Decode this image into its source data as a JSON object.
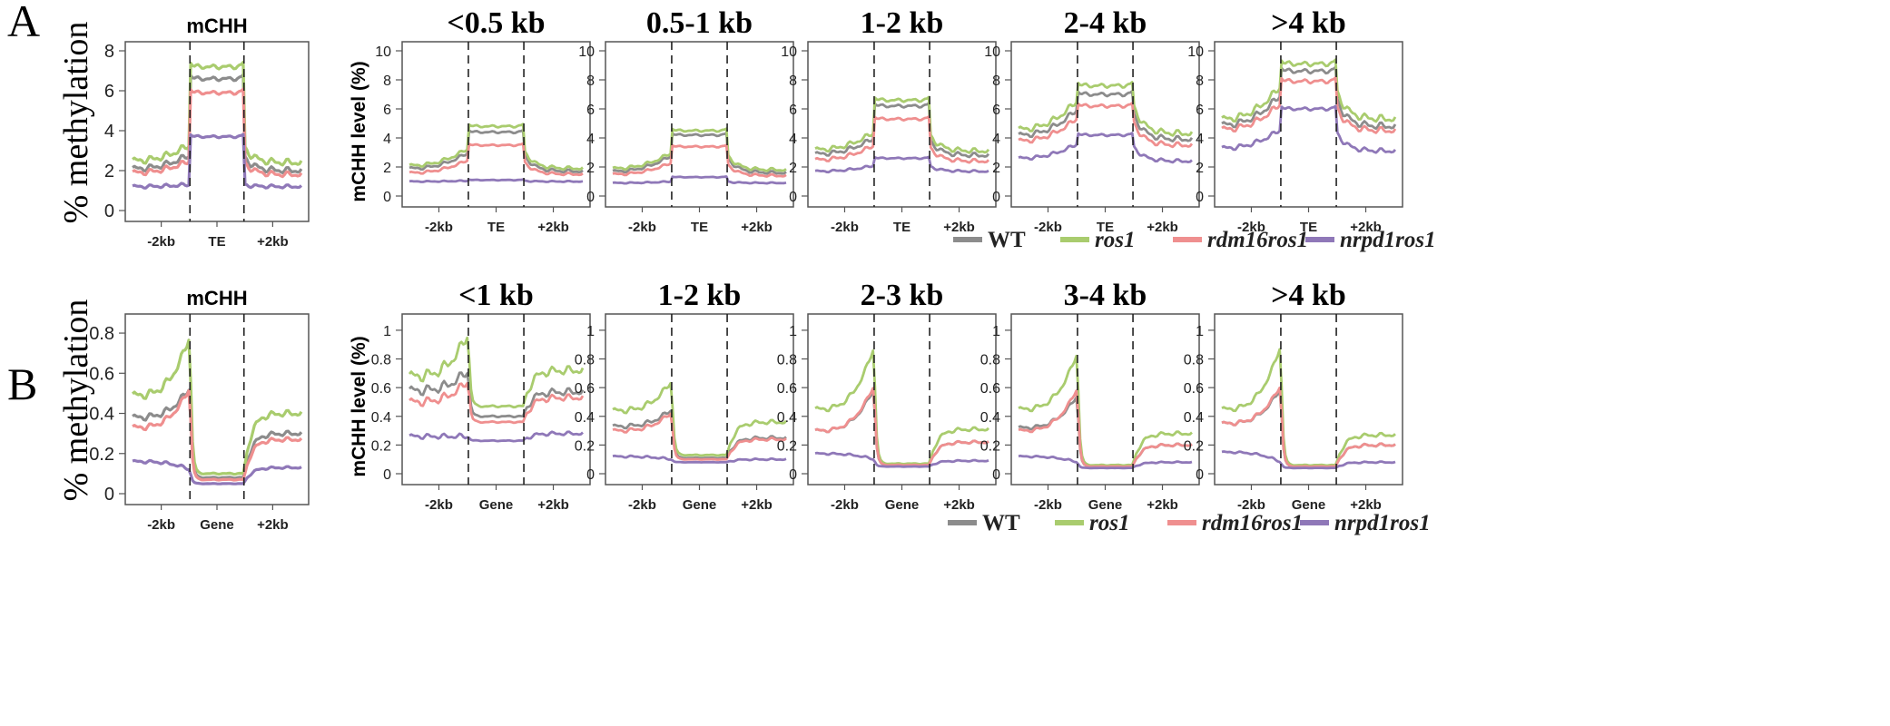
{
  "figure": {
    "panel_letters": [
      "A",
      "B"
    ],
    "ylabel_summary": "% methylation",
    "ylabel_detail": "mCHH level (%)",
    "colors": {
      "WT": "#8c8c8c",
      "ros1": "#a9cc6e",
      "rdm16ros1": "#ef8f8f",
      "nrpd1ros1": "#8f78b8"
    },
    "legend": [
      {
        "key": "WT",
        "label": "WT",
        "italic": false
      },
      {
        "key": "ros1",
        "label": "ros1",
        "italic": true
      },
      {
        "key": "rdm16ros1",
        "label": "rdm16ros1",
        "italic": true
      },
      {
        "key": "nrpd1ros1",
        "label": "nrpd1ros1",
        "italic": true
      }
    ]
  },
  "chart_data": [
    {
      "id": "A-summary",
      "row": "A",
      "type": "line",
      "title": "mCHH",
      "ylim": [
        0,
        8
      ],
      "yticks": [
        0,
        2,
        4,
        6,
        8
      ],
      "xregions": [
        "-2kb",
        "TE",
        "+2kb"
      ],
      "ylabel": "% methylation",
      "series": [
        {
          "key": "WT",
          "flank": 2.1,
          "peak": 2.8,
          "body": 6.6,
          "right": 2.0
        },
        {
          "key": "ros1",
          "flank": 2.5,
          "peak": 3.3,
          "body": 7.2,
          "right": 2.4
        },
        {
          "key": "rdm16ros1",
          "flank": 1.9,
          "peak": 2.5,
          "body": 5.9,
          "right": 1.8
        },
        {
          "key": "nrpd1ros1",
          "flank": 1.2,
          "peak": 1.3,
          "body": 3.7,
          "right": 1.2
        }
      ]
    },
    {
      "id": "A-1",
      "row": "A",
      "type": "line",
      "title": "<0.5 kb",
      "ylim": [
        0,
        10
      ],
      "yticks": [
        0,
        2,
        4,
        6,
        8,
        10
      ],
      "xregions": [
        "-2kb",
        "TE",
        "+2kb"
      ],
      "ylabel": "mCHH level (%)",
      "series": [
        {
          "key": "WT",
          "flank": 1.9,
          "peak": 3.0,
          "body": 4.4,
          "right": 1.7
        },
        {
          "key": "ros1",
          "flank": 2.1,
          "peak": 3.3,
          "body": 4.8,
          "right": 1.9
        },
        {
          "key": "rdm16ros1",
          "flank": 1.6,
          "peak": 2.5,
          "body": 3.5,
          "right": 1.5
        },
        {
          "key": "nrpd1ros1",
          "flank": 1.0,
          "peak": 1.05,
          "body": 1.1,
          "right": 1.0
        }
      ]
    },
    {
      "id": "A-2",
      "row": "A",
      "type": "line",
      "title": "0.5-1 kb",
      "ylim": [
        0,
        10
      ],
      "yticks": [
        0,
        2,
        4,
        6,
        8,
        10
      ],
      "xregions": [
        "-2kb",
        "TE",
        "+2kb"
      ],
      "ylabel": "",
      "series": [
        {
          "key": "WT",
          "flank": 1.7,
          "peak": 2.8,
          "body": 4.2,
          "right": 1.6
        },
        {
          "key": "ros1",
          "flank": 1.9,
          "peak": 3.0,
          "body": 4.5,
          "right": 1.8
        },
        {
          "key": "rdm16ros1",
          "flank": 1.5,
          "peak": 2.3,
          "body": 3.4,
          "right": 1.4
        },
        {
          "key": "nrpd1ros1",
          "flank": 0.9,
          "peak": 1.0,
          "body": 1.3,
          "right": 0.9
        }
      ]
    },
    {
      "id": "A-3",
      "row": "A",
      "type": "line",
      "title": "1-2 kb",
      "ylim": [
        0,
        10
      ],
      "yticks": [
        0,
        2,
        4,
        6,
        8,
        10
      ],
      "xregions": [
        "-2kb",
        "TE",
        "+2kb"
      ],
      "ylabel": "",
      "series": [
        {
          "key": "WT",
          "flank": 2.9,
          "peak": 4.0,
          "body": 6.2,
          "right": 2.8
        },
        {
          "key": "ros1",
          "flank": 3.2,
          "peak": 4.4,
          "body": 6.6,
          "right": 3.1
        },
        {
          "key": "rdm16ros1",
          "flank": 2.5,
          "peak": 3.5,
          "body": 5.3,
          "right": 2.4
        },
        {
          "key": "nrpd1ros1",
          "flank": 1.7,
          "peak": 2.1,
          "body": 2.6,
          "right": 1.7
        }
      ]
    },
    {
      "id": "A-4",
      "row": "A",
      "type": "line",
      "title": "2-4 kb",
      "ylim": [
        0,
        10
      ],
      "yticks": [
        0,
        2,
        4,
        6,
        8,
        10
      ],
      "xregions": [
        "-2kb",
        "TE",
        "+2kb"
      ],
      "ylabel": "",
      "series": [
        {
          "key": "WT",
          "flank": 4.2,
          "peak": 6.0,
          "body": 7.0,
          "right": 3.9
        },
        {
          "key": "ros1",
          "flank": 4.6,
          "peak": 6.6,
          "body": 7.6,
          "right": 4.3
        },
        {
          "key": "rdm16ros1",
          "flank": 3.8,
          "peak": 5.4,
          "body": 6.2,
          "right": 3.5
        },
        {
          "key": "nrpd1ros1",
          "flank": 2.6,
          "peak": 3.6,
          "body": 4.2,
          "right": 2.4
        }
      ]
    },
    {
      "id": "A-5",
      "row": "A",
      "type": "line",
      "title": ">4 kb",
      "ylim": [
        0,
        10
      ],
      "yticks": [
        0,
        2,
        4,
        6,
        8,
        10
      ],
      "xregions": [
        "-2kb",
        "TE",
        "+2kb"
      ],
      "ylabel": "",
      "series": [
        {
          "key": "WT",
          "flank": 4.9,
          "peak": 7.0,
          "body": 8.6,
          "right": 4.8
        },
        {
          "key": "ros1",
          "flank": 5.3,
          "peak": 7.6,
          "body": 9.1,
          "right": 5.3
        },
        {
          "key": "rdm16ros1",
          "flank": 4.6,
          "peak": 6.4,
          "body": 7.9,
          "right": 4.5
        },
        {
          "key": "nrpd1ros1",
          "flank": 3.3,
          "peak": 4.6,
          "body": 6.0,
          "right": 3.1
        }
      ]
    },
    {
      "id": "B-summary",
      "row": "B",
      "type": "line",
      "title": "mCHH",
      "ylim": [
        0,
        0.85
      ],
      "yticks": [
        0.0,
        0.2,
        0.4,
        0.6,
        0.8
      ],
      "xregions": [
        "-2kb",
        "Gene",
        "+2kb"
      ],
      "ylabel": "% methylation",
      "series": [
        {
          "key": "WT",
          "flank": 0.38,
          "peak": 0.53,
          "body": 0.08,
          "right": 0.3
        },
        {
          "key": "ros1",
          "flank": 0.49,
          "peak": 0.79,
          "body": 0.1,
          "right": 0.4
        },
        {
          "key": "rdm16ros1",
          "flank": 0.33,
          "peak": 0.53,
          "body": 0.07,
          "right": 0.27
        },
        {
          "key": "nrpd1ros1",
          "flank": 0.16,
          "peak": 0.12,
          "body": 0.05,
          "right": 0.13
        }
      ]
    },
    {
      "id": "B-1",
      "row": "B",
      "type": "line",
      "title": "<1 kb",
      "ylim": [
        0,
        1.05
      ],
      "yticks": [
        0.0,
        0.2,
        0.4,
        0.6,
        0.8,
        1.0
      ],
      "xregions": [
        "-2kb",
        "Gene",
        "+2kb"
      ],
      "ylabel": "mCHH level (%)",
      "series": [
        {
          "key": "WT",
          "flank": 0.58,
          "peak": 0.72,
          "body": 0.4,
          "right": 0.57
        },
        {
          "key": "ros1",
          "flank": 0.68,
          "peak": 0.98,
          "body": 0.47,
          "right": 0.72
        },
        {
          "key": "rdm16ros1",
          "flank": 0.5,
          "peak": 0.65,
          "body": 0.36,
          "right": 0.53
        },
        {
          "key": "nrpd1ros1",
          "flank": 0.26,
          "peak": 0.26,
          "body": 0.23,
          "right": 0.28
        }
      ]
    },
    {
      "id": "B-2",
      "row": "B",
      "type": "line",
      "title": "1-2 kb",
      "ylim": [
        0,
        1.05
      ],
      "yticks": [
        0.0,
        0.2,
        0.4,
        0.6,
        0.8,
        1.0
      ],
      "xregions": [
        "-2kb",
        "Gene",
        "+2kb"
      ],
      "ylabel": "",
      "series": [
        {
          "key": "WT",
          "flank": 0.33,
          "peak": 0.45,
          "body": 0.11,
          "right": 0.25
        },
        {
          "key": "ros1",
          "flank": 0.44,
          "peak": 0.65,
          "body": 0.13,
          "right": 0.36
        },
        {
          "key": "rdm16ros1",
          "flank": 0.3,
          "peak": 0.43,
          "body": 0.1,
          "right": 0.24
        },
        {
          "key": "nrpd1ros1",
          "flank": 0.12,
          "peak": 0.1,
          "body": 0.08,
          "right": 0.1
        }
      ]
    },
    {
      "id": "B-3",
      "row": "B",
      "type": "line",
      "title": "2-3 kb",
      "ylim": [
        0,
        1.05
      ],
      "yticks": [
        0.0,
        0.2,
        0.4,
        0.6,
        0.8,
        1.0
      ],
      "xregions": [
        "-2kb",
        "Gene",
        "+2kb"
      ],
      "ylabel": "",
      "series": [
        {
          "key": "WT",
          "flank": 0.3,
          "peak": 0.6,
          "body": 0.06,
          "right": 0.22
        },
        {
          "key": "ros1",
          "flank": 0.45,
          "peak": 0.89,
          "body": 0.07,
          "right": 0.31
        },
        {
          "key": "rdm16ros1",
          "flank": 0.3,
          "peak": 0.62,
          "body": 0.06,
          "right": 0.22
        },
        {
          "key": "nrpd1ros1",
          "flank": 0.14,
          "peak": 0.1,
          "body": 0.05,
          "right": 0.09
        }
      ]
    },
    {
      "id": "B-4",
      "row": "B",
      "type": "line",
      "title": "3-4 kb",
      "ylim": [
        0,
        1.05
      ],
      "yticks": [
        0.0,
        0.2,
        0.4,
        0.6,
        0.8,
        1.0
      ],
      "xregions": [
        "-2kb",
        "Gene",
        "+2kb"
      ],
      "ylabel": "",
      "series": [
        {
          "key": "WT",
          "flank": 0.32,
          "peak": 0.55,
          "body": 0.05,
          "right": 0.2
        },
        {
          "key": "ros1",
          "flank": 0.45,
          "peak": 0.85,
          "body": 0.06,
          "right": 0.28
        },
        {
          "key": "rdm16ros1",
          "flank": 0.3,
          "peak": 0.6,
          "body": 0.05,
          "right": 0.2
        },
        {
          "key": "nrpd1ros1",
          "flank": 0.12,
          "peak": 0.08,
          "body": 0.04,
          "right": 0.08
        }
      ]
    },
    {
      "id": "B-5",
      "row": "B",
      "type": "line",
      "title": ">4 kb",
      "ylim": [
        0,
        1.05
      ],
      "yticks": [
        0.0,
        0.2,
        0.4,
        0.6,
        0.8,
        1.0
      ],
      "xregions": [
        "-2kb",
        "Gene",
        "+2kb"
      ],
      "ylabel": "",
      "series": [
        {
          "key": "WT",
          "flank": 0.35,
          "peak": 0.6,
          "body": 0.05,
          "right": 0.2
        },
        {
          "key": "ros1",
          "flank": 0.45,
          "peak": 0.9,
          "body": 0.06,
          "right": 0.27
        },
        {
          "key": "rdm16ros1",
          "flank": 0.35,
          "peak": 0.62,
          "body": 0.05,
          "right": 0.2
        },
        {
          "key": "nrpd1ros1",
          "flank": 0.15,
          "peak": 0.08,
          "body": 0.04,
          "right": 0.08
        }
      ]
    }
  ]
}
